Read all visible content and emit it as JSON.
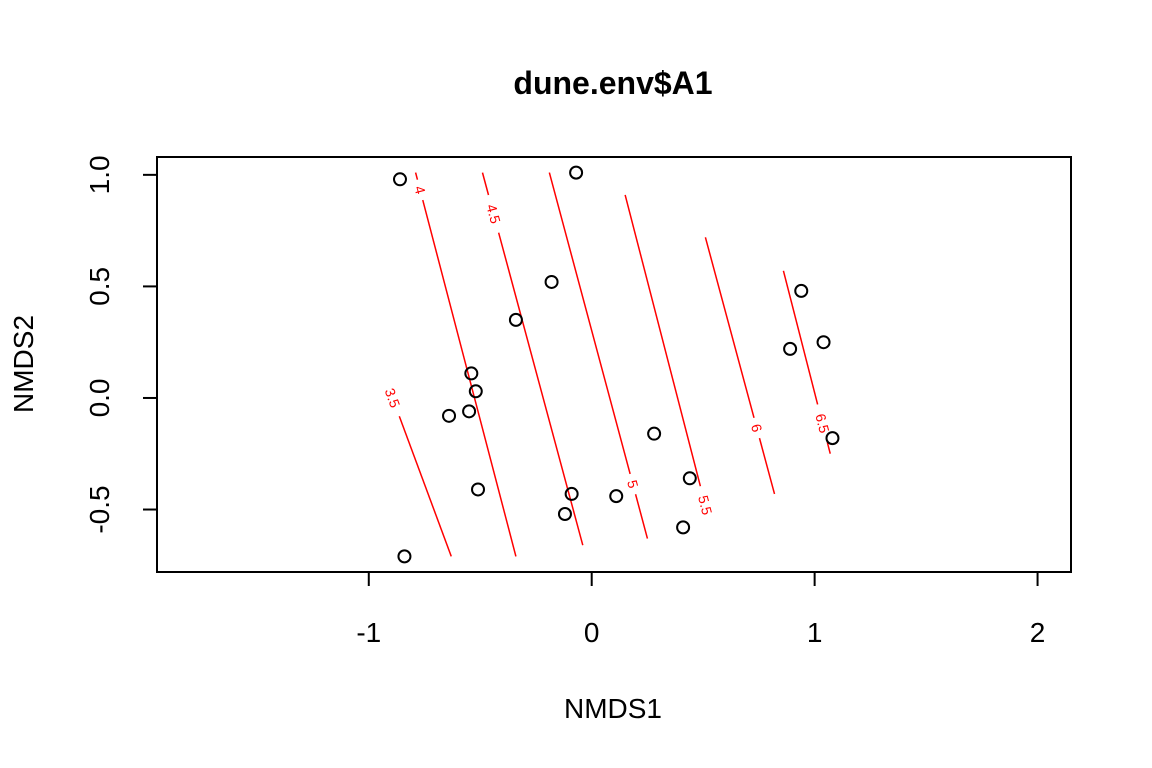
{
  "chart_data": {
    "type": "scatter",
    "title": "dune.env$A1",
    "xlabel": "NMDS1",
    "ylabel": "NMDS2",
    "xlim": [
      -1.95,
      2.15
    ],
    "ylim": [
      -0.78,
      1.08
    ],
    "x_ticks": [
      -1,
      0,
      1,
      2
    ],
    "x_tick_labels": [
      "-1",
      "0",
      "1",
      "2"
    ],
    "y_ticks": [
      -0.5,
      0.0,
      0.5,
      1.0
    ],
    "y_tick_labels": [
      "-0.5",
      "0.0",
      "0.5",
      "1.0"
    ],
    "point_color": "#000000",
    "contour_color": "#ff0000",
    "points": [
      {
        "x": -0.86,
        "y": 0.98
      },
      {
        "x": -0.07,
        "y": 1.01
      },
      {
        "x": -0.18,
        "y": 0.52
      },
      {
        "x": -0.34,
        "y": 0.35
      },
      {
        "x": -0.54,
        "y": 0.11
      },
      {
        "x": -0.52,
        "y": 0.03
      },
      {
        "x": -0.64,
        "y": -0.08
      },
      {
        "x": -0.55,
        "y": -0.06
      },
      {
        "x": -0.51,
        "y": -0.41
      },
      {
        "x": -0.09,
        "y": -0.43
      },
      {
        "x": -0.12,
        "y": -0.52
      },
      {
        "x": 0.11,
        "y": -0.44
      },
      {
        "x": 0.28,
        "y": -0.16
      },
      {
        "x": 0.44,
        "y": -0.36
      },
      {
        "x": 0.41,
        "y": -0.58
      },
      {
        "x": -0.84,
        "y": -0.71
      },
      {
        "x": 0.94,
        "y": 0.48
      },
      {
        "x": 0.89,
        "y": 0.22
      },
      {
        "x": 1.04,
        "y": 0.25
      },
      {
        "x": 1.08,
        "y": -0.18
      }
    ],
    "contours": [
      {
        "level": "3.5",
        "x1": -0.86,
        "y1": -0.09,
        "x2": -0.63,
        "y2": -0.71,
        "label_x": -0.84,
        "label_y": 0.02
      },
      {
        "level": "4",
        "x1": -0.79,
        "y1": 1.01,
        "x2": -0.34,
        "y2": -0.71,
        "label_x": -0.78,
        "label_y": 0.93
      },
      {
        "level": "4.5",
        "x1": -0.49,
        "y1": 1.01,
        "x2": -0.04,
        "y2": -0.66,
        "label_x": -0.46,
        "label_y": 0.82
      },
      {
        "level": "5",
        "x1": -0.19,
        "y1": 1.01,
        "x2": 0.25,
        "y2": -0.63,
        "label_x": 0.17,
        "label_y": -0.39
      },
      {
        "level": "5.5",
        "x1": 0.15,
        "y1": 0.91,
        "x2": 0.53,
        "y2": -0.56,
        "label_x": 0.51,
        "label_y": -0.48
      },
      {
        "level": "6",
        "x1": 0.51,
        "y1": 0.72,
        "x2": 0.82,
        "y2": -0.43,
        "label_x": 0.72,
        "label_y": -0.14
      },
      {
        "level": "6.5",
        "x1": 0.86,
        "y1": 0.57,
        "x2": 1.07,
        "y2": -0.25,
        "label_x": 1.01,
        "label_y": -0.12
      }
    ]
  }
}
